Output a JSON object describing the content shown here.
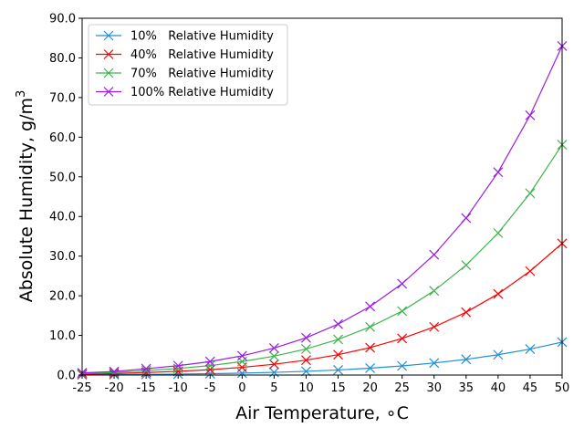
{
  "chart_data": {
    "type": "line",
    "xlabel": "Air Temperature, ∘C",
    "ylabel": "Absolute Humidity, g/m",
    "ylabel_superscript": "3",
    "xlim": [
      -25,
      50
    ],
    "ylim": [
      0,
      90
    ],
    "x": [
      -25,
      -20,
      -15,
      -10,
      -5,
      0,
      5,
      10,
      15,
      20,
      25,
      30,
      35,
      40,
      45,
      50
    ],
    "x_ticks": [
      "-25",
      "-20",
      "-15",
      "-10",
      "-5",
      "0",
      "5",
      "10",
      "15",
      "20",
      "25",
      "30",
      "35",
      "40",
      "45",
      "50"
    ],
    "y_ticks": [
      "0.0",
      "10.0",
      "20.0",
      "30.0",
      "40.0",
      "50.0",
      "60.0",
      "70.0",
      "80.0",
      "90.0"
    ],
    "grid": false,
    "legend_position": "top-left",
    "marker": "x",
    "series": [
      {
        "name": "10%   Relative Humidity",
        "color": "#1f8fd8",
        "values": [
          0.06,
          0.09,
          0.16,
          0.24,
          0.34,
          0.48,
          0.68,
          0.94,
          1.28,
          1.73,
          2.3,
          3.04,
          3.96,
          5.12,
          6.55,
          8.3
        ]
      },
      {
        "name": "40%   Relative Humidity",
        "color": "#ff0000",
        "values": [
          0.22,
          0.35,
          0.64,
          0.94,
          1.36,
          1.94,
          2.72,
          3.76,
          5.14,
          6.92,
          9.22,
          12.14,
          15.84,
          20.47,
          26.21,
          33.2
        ]
      },
      {
        "name": "70%   Relative Humidity",
        "color": "#3cb44b",
        "values": [
          0.39,
          0.62,
          1.12,
          1.65,
          2.38,
          3.4,
          4.76,
          6.58,
          8.99,
          12.12,
          16.13,
          21.25,
          27.72,
          35.82,
          45.86,
          58.1
        ]
      },
      {
        "name": "100% Relative Humidity",
        "color": "#9b1de6",
        "values": [
          0.55,
          0.88,
          1.6,
          2.36,
          3.4,
          4.85,
          6.8,
          9.4,
          12.84,
          17.3,
          23.04,
          30.36,
          39.6,
          51.17,
          65.52,
          83.0
        ]
      }
    ]
  }
}
